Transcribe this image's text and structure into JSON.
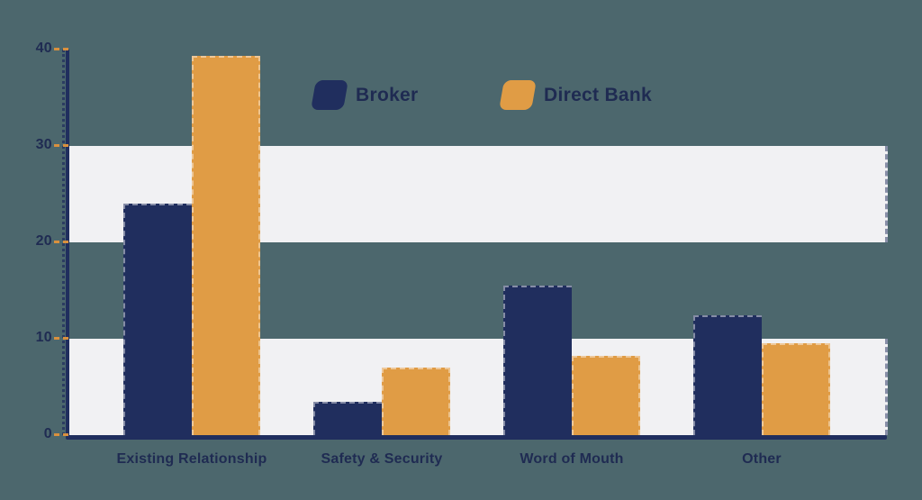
{
  "colors": {
    "background": "#4c676d",
    "band": "#f1f1f3",
    "axis": "#202e5e",
    "tick_dash": "#d9903e",
    "label_text": "#1f2b52",
    "broker": "#202e5e",
    "direct_bank": "#e09c45"
  },
  "chart_data": {
    "type": "bar",
    "categories": [
      "Existing Relationship",
      "Safety & Security",
      "Word of Mouth",
      "Other"
    ],
    "series": [
      {
        "name": "Broker",
        "color": "#202e5e",
        "values": [
          24,
          3.5,
          15.5,
          12.4
        ]
      },
      {
        "name": "Direct Bank",
        "color": "#e09c45",
        "values": [
          39.3,
          7,
          8.2,
          9.5
        ]
      }
    ],
    "ylim": [
      0,
      40
    ],
    "yticks": [
      0,
      10,
      20,
      30,
      40
    ],
    "grid_bands": [
      [
        0,
        10
      ],
      [
        20,
        30
      ]
    ],
    "legend_position": "top-center",
    "grid": "horizontal-bands-striped",
    "xlabel": "",
    "ylabel": ""
  }
}
